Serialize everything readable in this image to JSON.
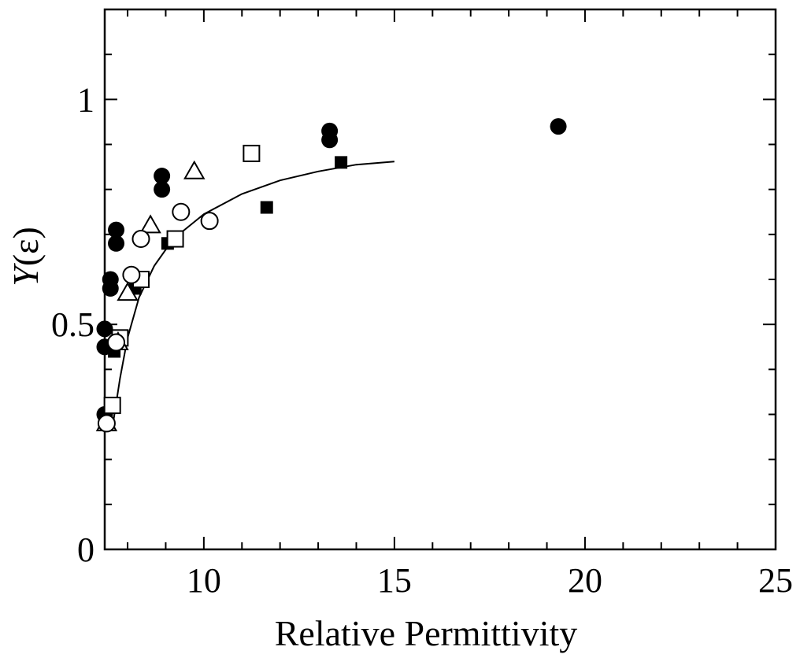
{
  "chart_data": {
    "type": "scatter",
    "title": "",
    "xlabel": "Relative Permittivity",
    "ylabel": "Y(ε)",
    "ylabel_main": "Y",
    "ylabel_arg": "(ε)",
    "xlim": [
      7.4,
      25
    ],
    "ylim": [
      0,
      1.2
    ],
    "x_ticks": [
      10,
      15,
      20,
      25
    ],
    "x_tick_labels": [
      "10",
      "15",
      "20",
      "25"
    ],
    "x_minor_ticks": [
      8,
      9,
      11,
      12,
      13,
      14,
      16,
      17,
      18,
      19,
      21,
      22,
      23,
      24
    ],
    "y_ticks": [
      0,
      0.5,
      1
    ],
    "y_tick_labels": [
      "0",
      "0.5",
      "1"
    ],
    "y_minor_ticks": [
      0.1,
      0.2,
      0.3,
      0.4,
      0.6,
      0.7,
      0.8,
      0.9,
      1.1
    ],
    "grid": false,
    "legend": "none",
    "series": [
      {
        "marker": "filled-circle",
        "points": [
          [
            7.4,
            0.3
          ],
          [
            7.4,
            0.45
          ],
          [
            7.4,
            0.49
          ],
          [
            7.55,
            0.58
          ],
          [
            7.55,
            0.6
          ],
          [
            7.7,
            0.68
          ],
          [
            7.7,
            0.71
          ],
          [
            8.9,
            0.8
          ],
          [
            8.9,
            0.83
          ],
          [
            13.3,
            0.91
          ],
          [
            13.3,
            0.93
          ],
          [
            19.3,
            0.94
          ]
        ]
      },
      {
        "marker": "filled-square",
        "points": [
          [
            7.65,
            0.44
          ],
          [
            8.2,
            0.58
          ],
          [
            9.05,
            0.68
          ],
          [
            11.65,
            0.76
          ],
          [
            13.6,
            0.86
          ]
        ]
      },
      {
        "marker": "open-square",
        "points": [
          [
            7.6,
            0.32
          ],
          [
            7.8,
            0.47
          ],
          [
            8.35,
            0.6
          ],
          [
            9.25,
            0.69
          ],
          [
            11.25,
            0.88
          ]
        ]
      },
      {
        "marker": "open-triangle",
        "points": [
          [
            7.45,
            0.28
          ],
          [
            7.75,
            0.46
          ],
          [
            8.0,
            0.57
          ],
          [
            8.6,
            0.72
          ],
          [
            9.75,
            0.84
          ]
        ]
      },
      {
        "marker": "open-circle",
        "points": [
          [
            7.45,
            0.28
          ],
          [
            7.7,
            0.46
          ],
          [
            8.1,
            0.61
          ],
          [
            8.35,
            0.69
          ],
          [
            9.4,
            0.75
          ],
          [
            10.15,
            0.73
          ]
        ]
      }
    ],
    "fit_curve": {
      "style": "solid-thin",
      "points": [
        [
          7.6,
          0.27
        ],
        [
          7.8,
          0.38
        ],
        [
          8.0,
          0.47
        ],
        [
          8.3,
          0.56
        ],
        [
          8.7,
          0.63
        ],
        [
          9.2,
          0.69
        ],
        [
          10.0,
          0.745
        ],
        [
          11.0,
          0.79
        ],
        [
          12.0,
          0.82
        ],
        [
          13.0,
          0.84
        ],
        [
          14.0,
          0.855
        ],
        [
          15.0,
          0.862
        ]
      ]
    }
  }
}
